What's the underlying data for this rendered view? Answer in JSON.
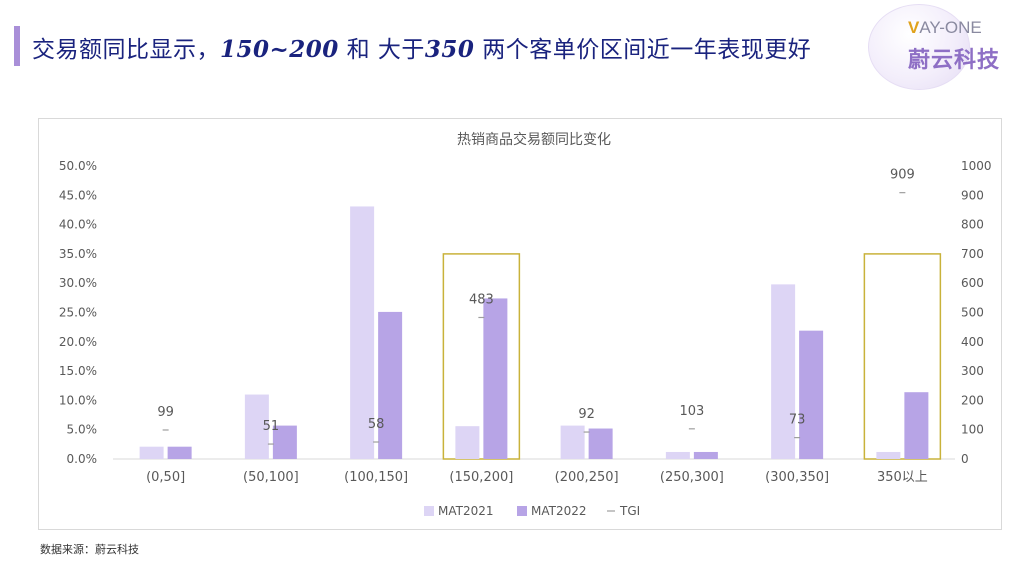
{
  "header": {
    "title_pre": "交易额同比显示，",
    "title_hl1": "150~200",
    "title_mid": " 和 大于",
    "title_hl2": "350",
    "title_post": " 两个客单价区间近一年表现更好"
  },
  "logo": {
    "en_first": "V",
    "en_rest": "AY-ONE",
    "cn": "蔚云科技"
  },
  "source": "数据来源：蔚云科技",
  "colors": {
    "accent": "#a98fd8",
    "mat2021": "#ddd5f5",
    "mat2022": "#b7a4e6",
    "highlight_box": "#c9b23a",
    "tgi_marker": "#9e9e9e"
  },
  "chart_data": {
    "type": "bar",
    "title": "热销商品交易额同比变化",
    "categories": [
      "(0,50]",
      "(50,100]",
      "(100,150]",
      "(150,200]",
      "(200,250]",
      "(250,300]",
      "(300,350]",
      "350以上"
    ],
    "series": [
      {
        "name": "MAT2021",
        "axis": "left",
        "values": [
          0.021,
          0.11,
          0.431,
          0.056,
          0.057,
          0.012,
          0.298,
          0.012
        ]
      },
      {
        "name": "MAT2022",
        "axis": "left",
        "values": [
          0.021,
          0.057,
          0.251,
          0.274,
          0.052,
          0.012,
          0.219,
          0.114
        ]
      },
      {
        "name": "TGI",
        "axis": "right",
        "type": "line",
        "values": [
          99,
          51,
          58,
          483,
          92,
          103,
          73,
          909
        ]
      }
    ],
    "y_left": {
      "lim": [
        0,
        0.5
      ],
      "ticks": [
        "0.0%",
        "5.0%",
        "10.0%",
        "15.0%",
        "20.0%",
        "25.0%",
        "30.0%",
        "35.0%",
        "40.0%",
        "45.0%",
        "50.0%"
      ]
    },
    "y_right": {
      "lim": [
        0,
        1000
      ],
      "ticks": [
        "0",
        "100",
        "200",
        "300",
        "400",
        "500",
        "600",
        "700",
        "800",
        "900",
        "1000"
      ]
    },
    "highlighted_categories": [
      "(150,200]",
      "350以上"
    ],
    "legend": {
      "position": "bottom",
      "items": [
        "MAT2021",
        "MAT2022",
        "TGI"
      ]
    },
    "grid": false
  }
}
